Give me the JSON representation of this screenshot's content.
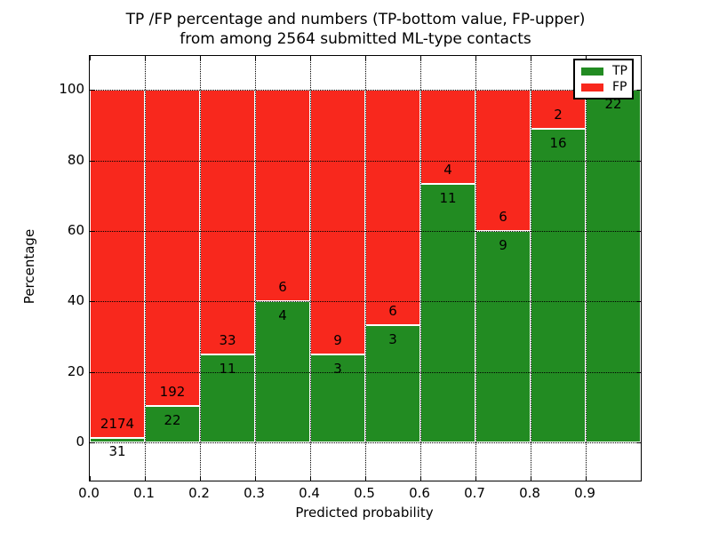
{
  "title": {
    "line1": "TP /FP percentage and numbers (TP-bottom value, FP-upper)",
    "line2": "from among 2564 submitted ML-type contacts"
  },
  "axes": {
    "xlabel": "Predicted probability",
    "ylabel": "Percentage"
  },
  "legend": {
    "entries": [
      {
        "label": "TP",
        "color": "#228b22"
      },
      {
        "label": "FP",
        "color": "#f8281d"
      }
    ]
  },
  "chart_data": {
    "type": "bar",
    "variant": "stacked-percentage",
    "title": "TP /FP percentage and numbers (TP-bottom value, FP-upper) from among 2564 submitted ML-type contacts",
    "xlabel": "Predicted probability",
    "ylabel": "Percentage",
    "total_contacts": 2564,
    "bin_starts": [
      0.0,
      0.1,
      0.2,
      0.3,
      0.4,
      0.5,
      0.6,
      0.7,
      0.8,
      0.9
    ],
    "bin_width": 0.1,
    "series": [
      {
        "name": "TP",
        "color": "#228b22",
        "counts": [
          31,
          22,
          11,
          4,
          3,
          3,
          11,
          9,
          16,
          22
        ],
        "percent": [
          1.41,
          10.28,
          25.0,
          40.0,
          25.0,
          33.33,
          73.33,
          60.0,
          88.89,
          100.0
        ]
      },
      {
        "name": "FP",
        "color": "#f8281d",
        "counts": [
          2174,
          192,
          33,
          6,
          9,
          6,
          4,
          6,
          2,
          0
        ],
        "percent": [
          98.59,
          89.72,
          75.0,
          60.0,
          75.0,
          66.67,
          26.67,
          40.0,
          11.11,
          0.0
        ]
      }
    ],
    "xticks": [
      "0.0",
      "0.1",
      "0.2",
      "0.3",
      "0.4",
      "0.5",
      "0.6",
      "0.7",
      "0.8",
      "0.9"
    ],
    "yticks": [
      0,
      20,
      40,
      60,
      80,
      100
    ],
    "xlim": [
      0.0,
      1.0
    ],
    "ylim": [
      -10.8,
      109.6
    ],
    "grid": true,
    "grid_style": "dotted",
    "bar_edge_color": "#ffffff",
    "legend_position": "upper-right"
  }
}
